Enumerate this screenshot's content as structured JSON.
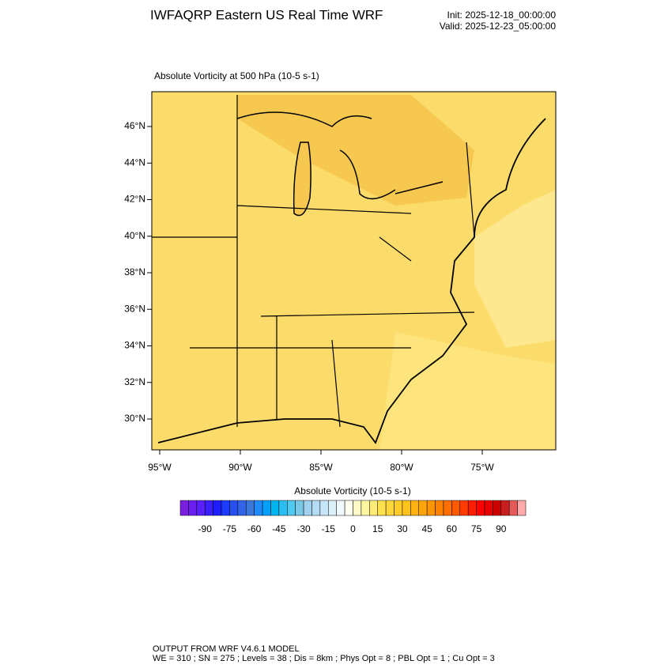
{
  "header": {
    "title": "IWFAQRP Eastern US Real Time WRF",
    "init": "Init: 2025-12-18_00:00:00",
    "valid": "Valid: 2025-12-23_05:00:00"
  },
  "map": {
    "subtitle": "Absolute Vorticity at 500 hPa   (10-5 s-1)",
    "lat_labels": [
      "46°N",
      "44°N",
      "42°N",
      "40°N",
      "38°N",
      "36°N",
      "34°N",
      "32°N",
      "30°N"
    ],
    "lon_labels": [
      "95°W",
      "90°W",
      "85°W",
      "80°W",
      "75°W"
    ]
  },
  "colorbar": {
    "title": "Absolute Vorticity  (10-5 s-1)",
    "labels": [
      -90,
      -75,
      -60,
      -45,
      -30,
      -15,
      0,
      15,
      30,
      45,
      60,
      75,
      90
    ],
    "colors": [
      "#7a1fe0",
      "#6a1ff0",
      "#5a1fff",
      "#3c1fff",
      "#1e1eff",
      "#1e3cff",
      "#2850f0",
      "#3264e6",
      "#3c78dc",
      "#1e8cff",
      "#00a0ff",
      "#00b4f0",
      "#28bef0",
      "#50c8f0",
      "#78c8e6",
      "#a0d2f0",
      "#b4dcf5",
      "#c8e6fa",
      "#dcf0fa",
      "#f0faff",
      "#fffff0",
      "#fffac8",
      "#fff5a0",
      "#ffeb78",
      "#ffe150",
      "#ffd73c",
      "#ffcd28",
      "#ffc31e",
      "#ffb414",
      "#ffa50a",
      "#ff9600",
      "#ff8200",
      "#ff6e00",
      "#ff5a00",
      "#ff3c00",
      "#ff1e00",
      "#ff0000",
      "#e60000",
      "#cd0000",
      "#c81e1e",
      "#e65a5a",
      "#ffaaaa"
    ]
  },
  "footer": {
    "line1": "OUTPUT FROM WRF V4.6.1 MODEL",
    "line2": "WE = 310 ; SN = 275 ; Levels = 38 ; Dis = 8km ; Phys Opt = 8 ; PBL Opt = 1 ; Cu Opt = 3"
  }
}
